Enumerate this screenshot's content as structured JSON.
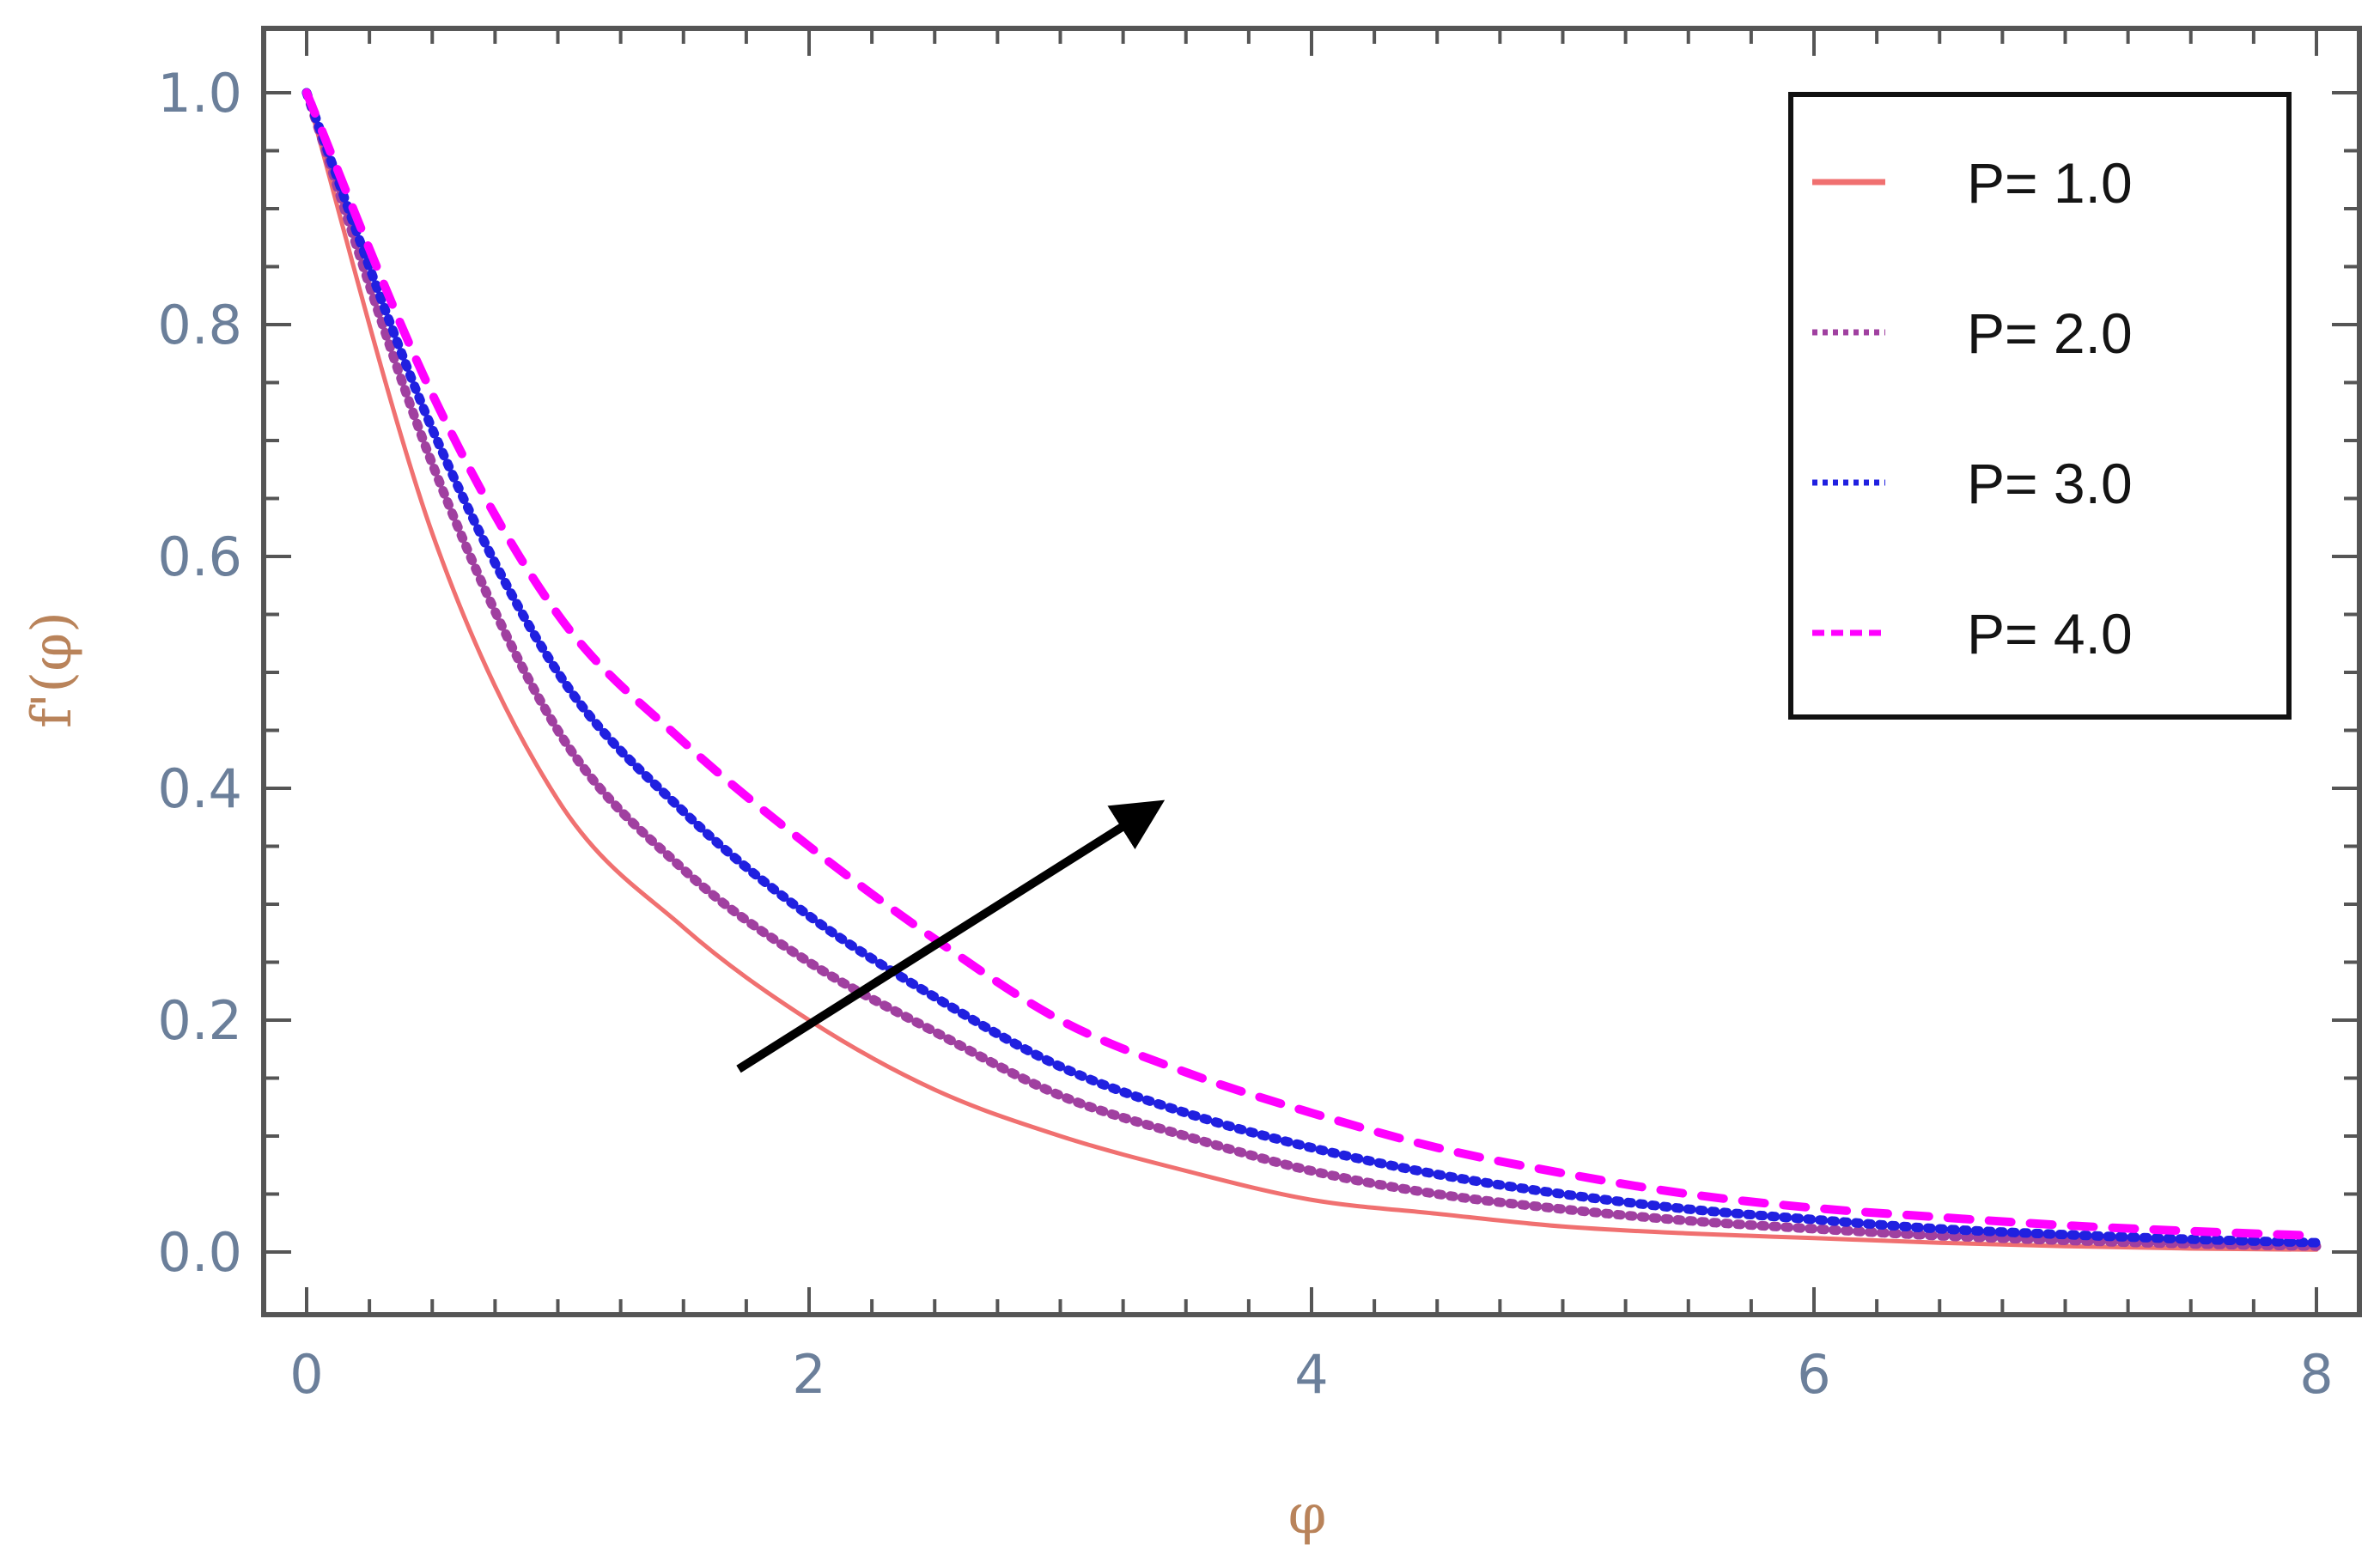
{
  "chart_data": {
    "type": "line",
    "title": "",
    "xlabel": "φ",
    "ylabel": "f'(φ)",
    "xlim": [
      0,
      8
    ],
    "ylim": [
      0,
      1.0
    ],
    "x_ticks": [
      "0",
      "2",
      "4",
      "6",
      "8"
    ],
    "y_ticks": [
      "0.0",
      "0.2",
      "0.4",
      "0.6",
      "0.8",
      "1.0"
    ],
    "grid": false,
    "legend_position": "top-right",
    "annotation": "arrow pointing toward increasing P",
    "x": [
      0,
      0.5,
      1,
      1.5,
      2,
      2.5,
      3,
      3.5,
      4,
      4.5,
      5,
      5.5,
      6,
      6.5,
      7,
      7.5,
      8
    ],
    "series": [
      {
        "name": "P= 1.0",
        "color": "#f07070",
        "dash": "solid",
        "values": [
          1.0,
          0.62,
          0.39,
          0.28,
          0.2,
          0.14,
          0.1,
          0.07,
          0.045,
          0.033,
          0.022,
          0.016,
          0.012,
          0.008,
          0.005,
          0.003,
          0.002
        ]
      },
      {
        "name": "P= 2.0",
        "color": "#a040a0",
        "dash": "dotted",
        "values": [
          1.0,
          0.68,
          0.45,
          0.33,
          0.25,
          0.19,
          0.135,
          0.1,
          0.07,
          0.05,
          0.037,
          0.027,
          0.02,
          0.014,
          0.01,
          0.007,
          0.005
        ]
      },
      {
        "name": "P= 3.0",
        "color": "#2020e0",
        "dash": "dotted",
        "values": [
          1.0,
          0.71,
          0.5,
          0.38,
          0.29,
          0.22,
          0.16,
          0.12,
          0.09,
          0.067,
          0.05,
          0.037,
          0.028,
          0.02,
          0.015,
          0.011,
          0.008
        ]
      },
      {
        "name": "P= 4.0",
        "color": "#ff00ff",
        "dash": "dashed",
        "values": [
          1.0,
          0.74,
          0.55,
          0.44,
          0.35,
          0.27,
          0.2,
          0.155,
          0.12,
          0.09,
          0.068,
          0.05,
          0.038,
          0.03,
          0.023,
          0.018,
          0.014
        ]
      }
    ]
  }
}
